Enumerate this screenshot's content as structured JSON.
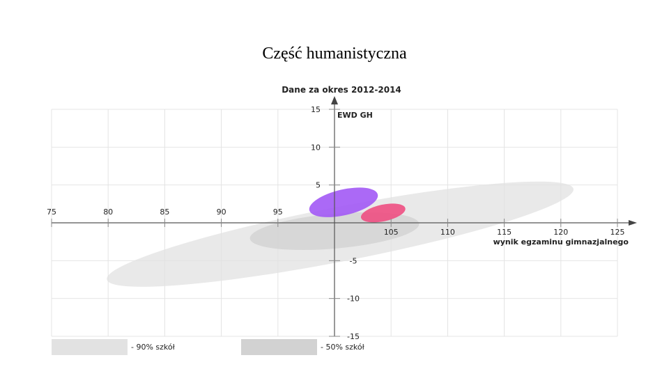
{
  "slide": {
    "title": "Część humanistyczna"
  },
  "chart_data": {
    "type": "scatter",
    "subtitle": "Dane za okres 2012-2014",
    "xlabel": "wynik egzaminu gimnazjalnego",
    "ylabel": "EWD GH",
    "xlim": [
      75,
      125
    ],
    "ylim": [
      -15,
      15
    ],
    "x_ticks": [
      "75",
      "80",
      "85",
      "90",
      "95",
      "105",
      "110",
      "115",
      "120",
      "125"
    ],
    "x_tick_values": [
      75,
      80,
      85,
      90,
      95,
      105,
      110,
      115,
      120,
      125
    ],
    "y_ticks": [
      "15",
      "10",
      "5",
      "-5",
      "-10",
      "-15"
    ],
    "y_tick_values": [
      15,
      10,
      5,
      -5,
      -10,
      -15
    ],
    "grid": true,
    "regions": [
      {
        "name": "- 90% szkół",
        "color": "#e2e2e2",
        "opacity": 0.75,
        "cx": 100.5,
        "cy": -1.5,
        "rx": 21,
        "ry": 3.6,
        "angle": -11
      },
      {
        "name": "- 50% szkół",
        "color": "#d2d2d2",
        "opacity": 0.8,
        "cx": 100.0,
        "cy": -1.1,
        "rx": 7.5,
        "ry": 2.3,
        "angle": -5
      }
    ],
    "series": [
      {
        "color": "#a259f5",
        "cx": 100.8,
        "cy": 2.7,
        "rx": 3.1,
        "ry": 1.7,
        "angle": -13
      },
      {
        "color": "#ee4f82",
        "cx": 104.3,
        "cy": 1.3,
        "rx": 2.0,
        "ry": 1.1,
        "angle": -12
      }
    ],
    "legend": {
      "position": "bottom-left",
      "items": [
        {
          "label": "- 90% szkół",
          "color": "#e2e2e2"
        },
        {
          "label": "- 50% szkół",
          "color": "#d2d2d2"
        }
      ]
    }
  }
}
